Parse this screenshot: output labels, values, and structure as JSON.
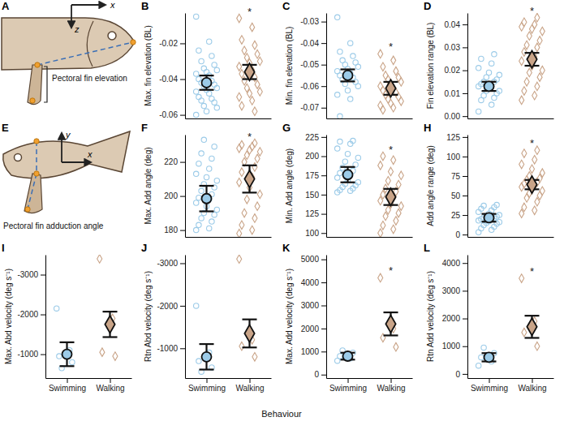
{
  "x_axis_title": "Behaviour",
  "diagrams": [
    {
      "label": "A",
      "axis_labels": [
        "x",
        "z"
      ],
      "caption": "Pectoral fin elevation"
    },
    {
      "label": "E",
      "axis_labels": [
        "y",
        "x"
      ],
      "caption": "Pectoral fin adduction angle"
    }
  ],
  "chart_data": [
    {
      "type": "strip",
      "label": "B",
      "ylabel": "Max. fin elevation (BL)",
      "categories": [
        "Swimming",
        "Walking"
      ],
      "colors": [
        "#9ccbe8",
        "#c9a488"
      ],
      "tick_labels": "y",
      "ylim": [
        -0.062,
        -0.003
      ],
      "yticks": [
        -0.06,
        -0.04,
        -0.02
      ],
      "values": [
        -0.042,
        -0.036
      ],
      "errors": [
        0.004,
        0.004
      ],
      "points": [
        [
          -0.005,
          -0.019,
          -0.024,
          -0.027,
          -0.03,
          -0.032,
          -0.034,
          -0.035,
          -0.036,
          -0.037,
          -0.038,
          -0.04,
          -0.041,
          -0.042,
          -0.043,
          -0.044,
          -0.045,
          -0.046,
          -0.047,
          -0.048,
          -0.05,
          -0.051,
          -0.052,
          -0.053,
          -0.055,
          -0.056,
          -0.058,
          -0.06
        ],
        [
          -0.006,
          -0.011,
          -0.018,
          -0.021,
          -0.024,
          -0.026,
          -0.028,
          -0.03,
          -0.031,
          -0.033,
          -0.035,
          -0.037,
          -0.039,
          -0.041,
          -0.043,
          -0.045,
          -0.047,
          -0.048,
          -0.05,
          -0.052,
          -0.055,
          -0.058
        ]
      ],
      "annotations": [
        {
          "text": "*",
          "category": "Walking"
        }
      ]
    },
    {
      "type": "strip",
      "label": "C",
      "ylabel": "Min. fin elevation (BL)",
      "categories": [
        "Swimming",
        "Walking"
      ],
      "colors": [
        "#9ccbe8",
        "#c9a488"
      ],
      "tick_labels": "y",
      "ylim": [
        -0.075,
        -0.026
      ],
      "yticks": [
        -0.07,
        -0.06,
        -0.05,
        -0.04,
        -0.03
      ],
      "values": [
        -0.055,
        -0.061
      ],
      "errors": [
        0.0028,
        0.003
      ],
      "points": [
        [
          -0.028,
          -0.04,
          -0.044,
          -0.046,
          -0.048,
          -0.049,
          -0.05,
          -0.051,
          -0.052,
          -0.053,
          -0.054,
          -0.055,
          -0.056,
          -0.057,
          -0.058,
          -0.059,
          -0.06,
          -0.062,
          -0.064,
          -0.066,
          -0.074
        ],
        [
          -0.045,
          -0.048,
          -0.051,
          -0.053,
          -0.055,
          -0.056,
          -0.057,
          -0.058,
          -0.059,
          -0.06,
          -0.061,
          -0.062,
          -0.063,
          -0.064,
          -0.065,
          -0.066,
          -0.067,
          -0.068,
          -0.069,
          -0.07,
          -0.071
        ]
      ],
      "annotations": [
        {
          "text": "*",
          "category": "Walking"
        }
      ]
    },
    {
      "type": "strip",
      "label": "D",
      "ylabel": "Fin elevation range (BL)",
      "categories": [
        "Swimming",
        "Walking"
      ],
      "colors": [
        "#9ccbe8",
        "#c9a488"
      ],
      "tick_labels": "y",
      "ylim": [
        -0.001,
        0.045
      ],
      "yticks": [
        {
          "value": 0,
          "label": "0.00"
        },
        0.01,
        0.02,
        0.03,
        0.04
      ],
      "values": [
        0.013,
        0.0248
      ],
      "errors": [
        0.002,
        0.0028
      ],
      "points": [
        [
          0.002,
          0.005,
          0.007,
          0.008,
          0.009,
          0.01,
          0.011,
          0.011,
          0.012,
          0.013,
          0.013,
          0.014,
          0.015,
          0.015,
          0.016,
          0.017,
          0.018,
          0.019,
          0.021,
          0.023,
          0.025,
          0.027
        ],
        [
          0.007,
          0.009,
          0.011,
          0.013,
          0.015,
          0.017,
          0.019,
          0.02,
          0.022,
          0.024,
          0.026,
          0.028,
          0.03,
          0.031,
          0.033,
          0.035,
          0.037,
          0.038,
          0.039,
          0.04,
          0.041,
          0.043
        ]
      ],
      "annotations": [
        {
          "text": "*",
          "category": "Walking"
        }
      ]
    },
    {
      "type": "strip",
      "label": "F",
      "ylabel": "Max. Add angle (deg)",
      "categories": [
        "Swimming",
        "Walking"
      ],
      "colors": [
        "#9ccbe8",
        "#c9a488"
      ],
      "tick_labels": "y",
      "ylim": [
        176,
        236
      ],
      "yticks": [
        180,
        200,
        220
      ],
      "values": [
        198.5,
        210
      ],
      "errors": [
        7.5,
        8
      ],
      "points": [
        [
          180,
          181,
          183,
          185,
          187,
          189,
          190,
          192,
          194,
          196,
          198,
          199,
          201,
          203,
          205,
          207,
          209,
          211,
          213,
          216,
          219,
          222,
          225,
          229,
          233
        ],
        [
          178,
          180,
          183,
          187,
          190,
          194,
          198,
          201,
          205,
          208,
          211,
          214,
          217,
          220,
          222,
          224,
          226,
          227,
          228,
          229,
          230,
          231
        ]
      ],
      "annotations": [
        {
          "text": "*",
          "category": "Walking"
        }
      ]
    },
    {
      "type": "strip",
      "label": "G",
      "ylabel": "Min. Add angle (deg)",
      "categories": [
        "Swimming",
        "Walking"
      ],
      "colors": [
        "#9ccbe8",
        "#c9a488"
      ],
      "tick_labels": "y",
      "ylim": [
        95,
        228
      ],
      "yticks": [
        100,
        125,
        150,
        175,
        200,
        225
      ],
      "values": [
        176,
        147
      ],
      "errors": [
        10,
        10.5
      ],
      "points": [
        [
          153,
          155,
          156,
          158,
          160,
          162,
          164,
          166,
          169,
          172,
          175,
          178,
          181,
          185,
          189,
          193,
          198,
          203,
          210,
          216,
          219,
          220
        ],
        [
          100,
          105,
          110,
          116,
          122,
          126,
          130,
          135,
          138,
          142,
          146,
          150,
          154,
          158,
          163,
          168,
          175,
          180,
          188,
          195,
          200
        ]
      ],
      "annotations": [
        {
          "text": "*",
          "category": "Walking"
        }
      ]
    },
    {
      "type": "strip",
      "label": "H",
      "ylabel": "Add angle range (deg)",
      "categories": [
        "Swimming",
        "Walking"
      ],
      "colors": [
        "#9ccbe8",
        "#c9a488"
      ],
      "tick_labels": "y",
      "ylim": [
        -3,
        128
      ],
      "yticks": [
        0,
        25,
        50,
        75,
        100,
        125
      ],
      "values": [
        21.5,
        64
      ],
      "errors": [
        5,
        6
      ],
      "points": [
        [
          3,
          6,
          8,
          10,
          12,
          14,
          15,
          16,
          17,
          18,
          19,
          20,
          21,
          22,
          23,
          24,
          25,
          27,
          29,
          31,
          33,
          35,
          37,
          38
        ],
        [
          27,
          31,
          35,
          42,
          47,
          50,
          53,
          56,
          58,
          61,
          63,
          65,
          67,
          70,
          72,
          75,
          79,
          84,
          90,
          96,
          104,
          108
        ]
      ],
      "annotations": [
        {
          "text": "*",
          "category": "Walking"
        }
      ]
    },
    {
      "type": "strip",
      "label": "I",
      "ylabel": "Max. Abd velocity (deg s⁻¹)",
      "categories": [
        "Swimming",
        "Walking"
      ],
      "colors": [
        "#9ccbe8",
        "#c9a488"
      ],
      "ylim": [
        -400,
        -3500
      ],
      "yticks": [
        -1000,
        -2000,
        -3000
      ],
      "values": [
        -1000,
        -1750
      ],
      "errors": [
        300,
        320
      ],
      "points": [
        [
          -2150,
          -1100,
          -950,
          -800,
          -650
        ],
        [
          -3400,
          -1900,
          -1050,
          -950
        ]
      ]
    },
    {
      "type": "strip",
      "label": "J",
      "ylabel": "Rtn Abd velocity (deg s⁻¹)",
      "categories": [
        "Swimming",
        "Walking"
      ],
      "colors": [
        "#9ccbe8",
        "#c9a488"
      ],
      "ylim": [
        -300,
        -3200
      ],
      "yticks": [
        -1000,
        -2000,
        -3000
      ],
      "values": [
        -800,
        -1350
      ],
      "errors": [
        300,
        330
      ],
      "points": [
        [
          -2000,
          -900,
          -700,
          -550,
          -450
        ],
        [
          -3100,
          -1200,
          -1050,
          -800
        ]
      ]
    },
    {
      "type": "strip",
      "label": "K",
      "ylabel": "Max. Add velocity (deg s⁻¹)",
      "categories": [
        "Swimming",
        "Walking"
      ],
      "colors": [
        "#9ccbe8",
        "#c9a488"
      ],
      "ylim": [
        -150,
        5200
      ],
      "yticks": [
        0,
        1000,
        2000,
        3000,
        4000,
        5000
      ],
      "values": [
        800,
        2200
      ],
      "errors": [
        150,
        500
      ],
      "points": [
        [
          600,
          700,
          800,
          950,
          1050
        ],
        [
          4200,
          2000,
          1600,
          1200
        ]
      ],
      "annotations": [
        {
          "text": "*",
          "category": "Walking"
        }
      ]
    },
    {
      "type": "strip",
      "label": "L",
      "ylabel": "Rtn Add velocity (deg s⁻¹)",
      "categories": [
        "Swimming",
        "Walking"
      ],
      "colors": [
        "#9ccbe8",
        "#c9a488"
      ],
      "ylim": [
        -150,
        4300
      ],
      "yticks": [
        0,
        1000,
        2000,
        3000,
        4000
      ],
      "values": [
        600,
        1700
      ],
      "errors": [
        150,
        400
      ],
      "points": [
        [
          300,
          450,
          600,
          750,
          950
        ],
        [
          3450,
          1900,
          1500,
          1000
        ]
      ],
      "annotations": [
        {
          "text": "*",
          "category": "Walking"
        }
      ]
    }
  ]
}
